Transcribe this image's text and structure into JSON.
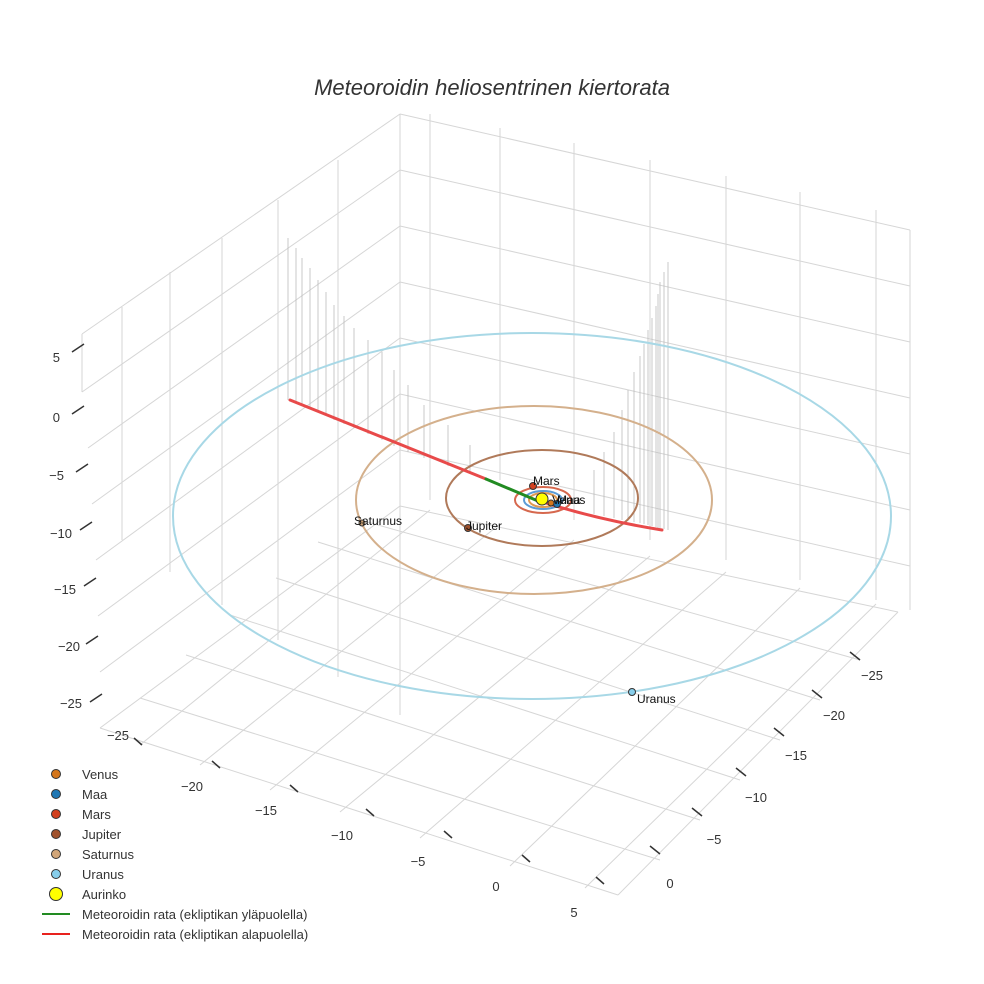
{
  "chart_data": {
    "type": "scatter3d",
    "title": "Meteoroidin heliosentrinen kiertorata",
    "x_ticks": [
      "−25",
      "−20",
      "−15",
      "−10",
      "−5",
      "0",
      "5"
    ],
    "y_ticks": [
      "−25",
      "−20",
      "−15",
      "−10",
      "−5",
      "0"
    ],
    "z_ticks": [
      "5",
      "0",
      "−5",
      "−10",
      "−15",
      "−20",
      "−25"
    ],
    "planets": [
      {
        "name": "Venus",
        "color": "#d4761b",
        "orbit_radius": 0.72
      },
      {
        "name": "Maa",
        "color": "#1f77b4",
        "orbit_radius": 1.0
      },
      {
        "name": "Mars",
        "color": "#d2401f",
        "orbit_radius": 1.52
      },
      {
        "name": "Jupiter",
        "color": "#a0522d",
        "orbit_radius": 5.2
      },
      {
        "name": "Saturnus",
        "color": "#d2a679",
        "orbit_radius": 9.5
      },
      {
        "name": "Uranus",
        "color": "#87ceeb",
        "orbit_radius": 19.2
      }
    ],
    "sun": {
      "name": "Aurinko",
      "color": "#ffff00"
    },
    "trajectory": [
      {
        "name": "Meteoroidin rata (ekliptikan yläpuolella)",
        "color": "#228b22"
      },
      {
        "name": "Meteoroidin rata (ekliptikan alapuolella)",
        "color": "#e8221e"
      }
    ],
    "legend_position": "bottom-left"
  }
}
